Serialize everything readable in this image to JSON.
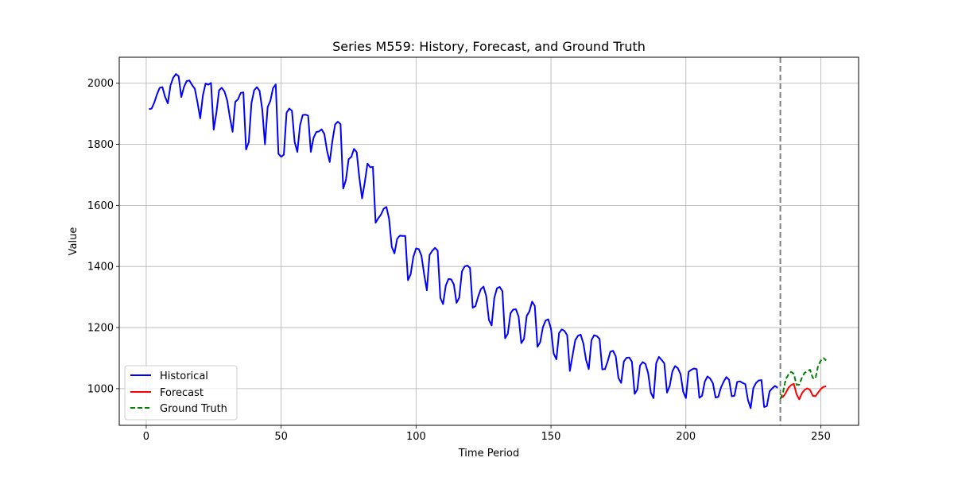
{
  "chart_data": {
    "type": "line",
    "title": "Series M559: History, Forecast, and Ground Truth",
    "xlabel": "Time Period",
    "ylabel": "Value",
    "xlim": [
      -10,
      264
    ],
    "ylim": [
      880,
      2085
    ],
    "xticks": [
      0,
      50,
      100,
      150,
      200,
      250
    ],
    "yticks": [
      1000,
      1200,
      1400,
      1600,
      1800,
      2000
    ],
    "grid": true,
    "legend_position": "lower-left",
    "forecast_start": 235,
    "series": [
      {
        "name": "Historical",
        "color": "#0000ff",
        "linestyle": "solid",
        "x_start": 1,
        "values": [
          1915,
          1917,
          1937,
          1964,
          1985,
          1987,
          1955,
          1934,
          1993,
          2018,
          2030,
          2023,
          1955,
          1988,
          2007,
          2009,
          1994,
          1982,
          1937,
          1885,
          1960,
          1999,
          1995,
          2001,
          1848,
          1903,
          1977,
          1985,
          1973,
          1944,
          1888,
          1841,
          1939,
          1947,
          1968,
          1970,
          1783,
          1807,
          1935,
          1977,
          1987,
          1975,
          1914,
          1800,
          1922,
          1942,
          1984,
          1996,
          1769,
          1759,
          1766,
          1903,
          1917,
          1910,
          1808,
          1775,
          1862,
          1896,
          1897,
          1894,
          1775,
          1821,
          1840,
          1842,
          1849,
          1834,
          1779,
          1742,
          1812,
          1865,
          1874,
          1866,
          1655,
          1683,
          1751,
          1759,
          1785,
          1774,
          1689,
          1623,
          1676,
          1737,
          1725,
          1726,
          1543,
          1558,
          1570,
          1589,
          1595,
          1556,
          1464,
          1443,
          1491,
          1501,
          1500,
          1500,
          1355,
          1375,
          1432,
          1459,
          1457,
          1435,
          1374,
          1322,
          1438,
          1451,
          1461,
          1452,
          1297,
          1277,
          1337,
          1359,
          1358,
          1341,
          1281,
          1298,
          1384,
          1400,
          1403,
          1395,
          1265,
          1270,
          1301,
          1326,
          1334,
          1303,
          1225,
          1207,
          1297,
          1329,
          1333,
          1319,
          1165,
          1180,
          1247,
          1259,
          1260,
          1236,
          1149,
          1163,
          1238,
          1253,
          1285,
          1271,
          1137,
          1152,
          1201,
          1223,
          1227,
          1196,
          1115,
          1096,
          1182,
          1194,
          1189,
          1175,
          1058,
          1109,
          1159,
          1173,
          1177,
          1148,
          1094,
          1064,
          1159,
          1175,
          1172,
          1163,
          1063,
          1064,
          1089,
          1121,
          1124,
          1106,
          1035,
          1019,
          1089,
          1101,
          1102,
          1088,
          983,
          997,
          1076,
          1087,
          1081,
          1051,
          987,
          969,
          1084,
          1104,
          1094,
          1083,
          987,
          1009,
          1057,
          1074,
          1067,
          1048,
          990,
          969,
          1055,
          1062,
          1066,
          1064,
          970,
          977,
          1023,
          1040,
          1033,
          1018,
          971,
          973,
          1004,
          1023,
          1038,
          1029,
          975,
          977,
          1022,
          1024,
          1019,
          1015,
          963,
          936,
          1002,
          1019,
          1027,
          1028,
          940,
          943,
          991,
          1001,
          1009,
          1003
        ]
      },
      {
        "name": "Forecast",
        "color": "#ff0000",
        "linestyle": "solid",
        "x_start": 235,
        "values": [
          971,
          973,
          986,
          1003,
          1012,
          1016,
          982,
          965,
          985,
          996,
          1001,
          996,
          977,
          975,
          987,
          999,
          1006,
          1008
        ]
      },
      {
        "name": "Ground Truth",
        "color": "#008000",
        "linestyle": "dashed",
        "x_start": 235,
        "values": [
          966,
          988,
          1031,
          1046,
          1055,
          1048,
          1013,
          1013,
          1036,
          1052,
          1057,
          1062,
          1035,
          1033,
          1075,
          1092,
          1100,
          1092
        ]
      }
    ]
  }
}
